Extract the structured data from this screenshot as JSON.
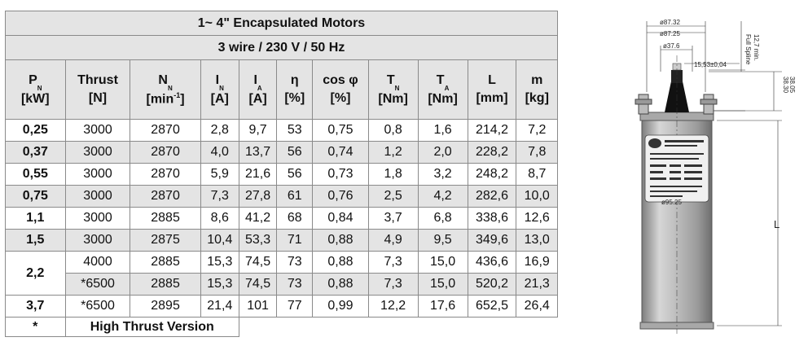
{
  "title": "1~  4\" Encapsulated Motors",
  "subtitle": "3 wire / 230 V / 50 Hz",
  "headers": [
    {
      "main": "P",
      "sub": "N",
      "unit": "[kW]"
    },
    {
      "main": "Thrust",
      "sub": "",
      "unit": "[N]"
    },
    {
      "main": "N",
      "sub": "N",
      "unit": "[min",
      "unit_sup": "-1",
      "unit_end": "]"
    },
    {
      "main": "I",
      "sub": "N",
      "unit": "[A]"
    },
    {
      "main": "I",
      "sub": "A",
      "unit": "[A]"
    },
    {
      "main": "η",
      "sub": "",
      "unit": "[%]"
    },
    {
      "main": "cos φ",
      "sub": "",
      "unit": "[%]"
    },
    {
      "main": "T",
      "sub": "N",
      "unit": "[Nm]"
    },
    {
      "main": "T",
      "sub": "A",
      "unit": "[Nm]"
    },
    {
      "main": "L",
      "sub": "",
      "unit": "[mm]"
    },
    {
      "main": "m",
      "sub": "",
      "unit": "[kg]"
    }
  ],
  "rows": [
    {
      "p": "0,25",
      "cells": [
        "3000",
        "2870",
        "2,8",
        "9,7",
        "53",
        "0,75",
        "0,8",
        "1,6",
        "214,2",
        "7,2"
      ]
    },
    {
      "p": "0,37",
      "cells": [
        "3000",
        "2870",
        "4,0",
        "13,7",
        "56",
        "0,74",
        "1,2",
        "2,0",
        "228,2",
        "7,8"
      ]
    },
    {
      "p": "0,55",
      "cells": [
        "3000",
        "2870",
        "5,9",
        "21,6",
        "56",
        "0,73",
        "1,8",
        "3,2",
        "248,2",
        "8,7"
      ]
    },
    {
      "p": "0,75",
      "cells": [
        "3000",
        "2870",
        "7,3",
        "27,8",
        "61",
        "0,76",
        "2,5",
        "4,2",
        "282,6",
        "10,0"
      ]
    },
    {
      "p": "1,1",
      "cells": [
        "3000",
        "2885",
        "8,6",
        "41,2",
        "68",
        "0,84",
        "3,7",
        "6,8",
        "338,6",
        "12,6"
      ]
    },
    {
      "p": "1,5",
      "cells": [
        "3000",
        "2875",
        "10,4",
        "53,3",
        "71",
        "0,88",
        "4,9",
        "9,5",
        "349,6",
        "13,0"
      ]
    },
    {
      "p": "2,2",
      "cells": [
        "4000",
        "2885",
        "15,3",
        "74,5",
        "73",
        "0,88",
        "7,3",
        "15,0",
        "436,6",
        "16,9"
      ]
    },
    {
      "p": "",
      "cells": [
        "*6500",
        "2885",
        "15,3",
        "74,5",
        "73",
        "0,88",
        "7,3",
        "15,0",
        "520,2",
        "21,3"
      ]
    },
    {
      "p": "3,7",
      "cells": [
        "*6500",
        "2895",
        "21,4",
        "101",
        "77",
        "0,99",
        "12,2",
        "17,6",
        "652,5",
        "26,4"
      ]
    }
  ],
  "footnote": {
    "symbol": "*",
    "text": "High Thrust Version"
  },
  "drawing": {
    "dim_outer1": "ø87.32",
    "dim_outer2": "ø87.25",
    "dim_shaft": "ø37.6",
    "dim_spline": "15,53±0,04",
    "dim_full_spline": "Full Spline",
    "dim_min": "12,7 min.",
    "dim_h1": "38.30",
    "dim_h2": "38.05",
    "dim_body": "ø95.25",
    "dim_length": "L"
  }
}
